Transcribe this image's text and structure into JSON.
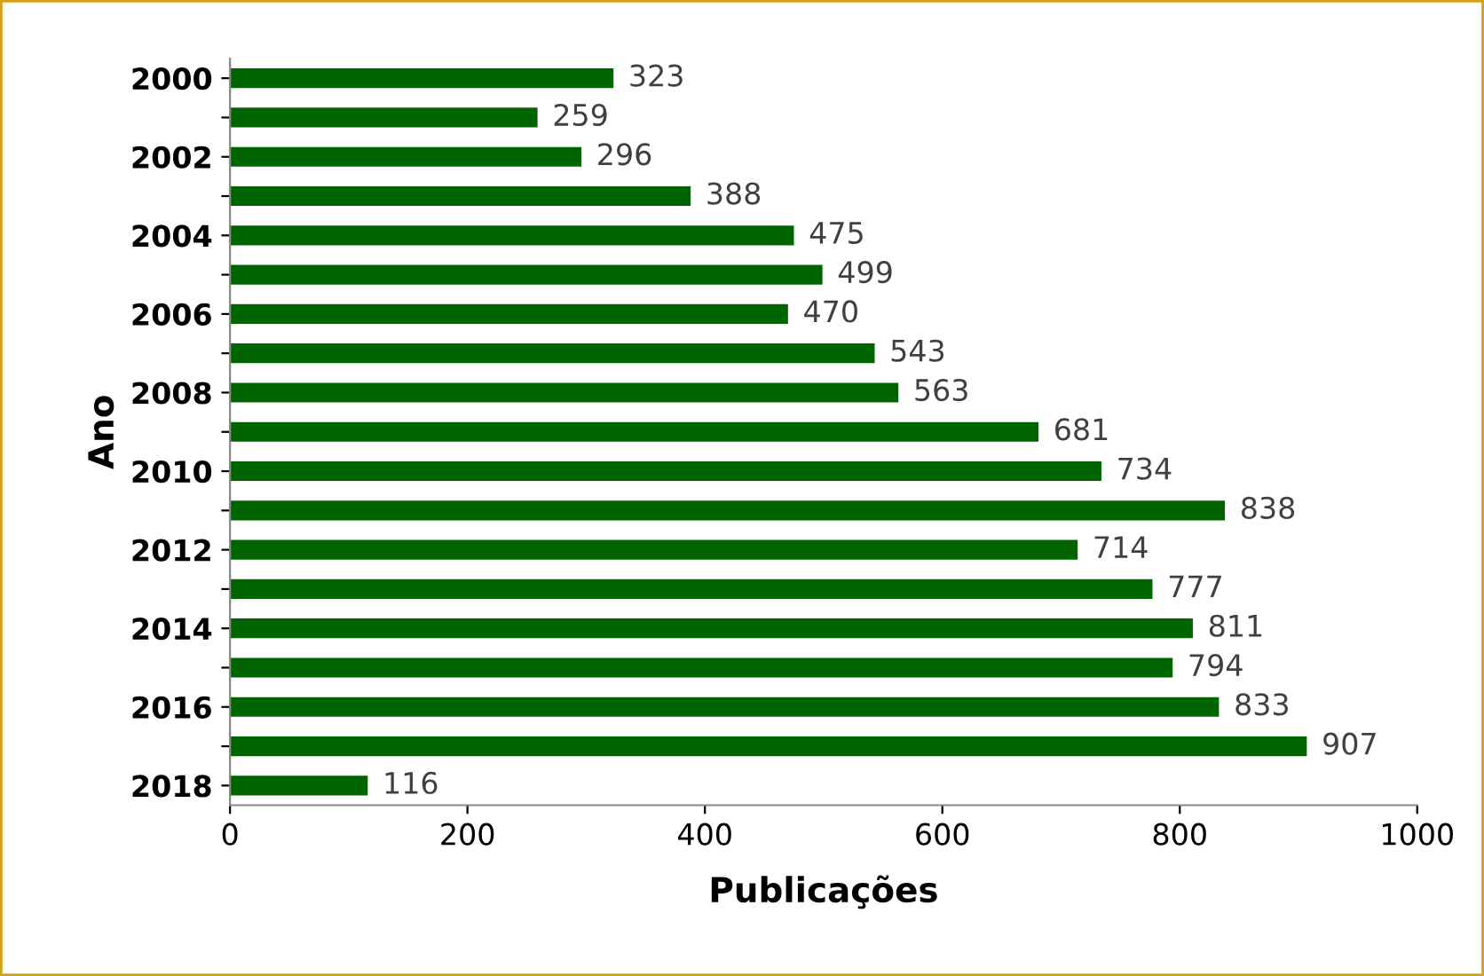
{
  "chart_data": {
    "type": "bar",
    "orientation": "horizontal",
    "xlabel": "Publicações",
    "ylabel": "Ano",
    "categories": [
      "2000",
      null,
      "2002",
      null,
      "2004",
      null,
      "2006",
      null,
      "2008",
      null,
      "2010",
      null,
      "2012",
      null,
      "2014",
      null,
      "2016",
      null,
      "2018"
    ],
    "values": [
      323,
      259,
      296,
      388,
      475,
      499,
      470,
      543,
      563,
      681,
      734,
      838,
      714,
      777,
      811,
      794,
      833,
      907,
      116
    ],
    "color": "#006400",
    "xlim": [
      0,
      1000
    ],
    "xticks": [
      0,
      200,
      400,
      600,
      800,
      1000
    ],
    "grid": false,
    "data_labels": true
  }
}
